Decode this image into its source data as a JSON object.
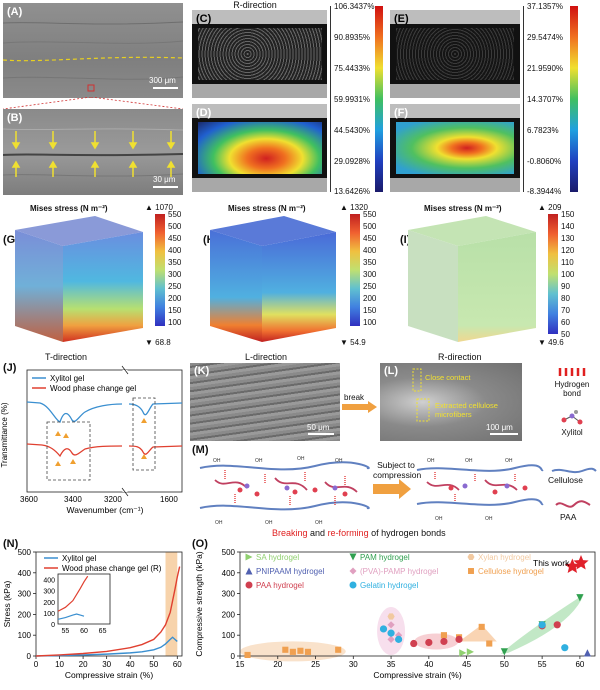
{
  "panels": {
    "A": "(A)",
    "B": "(B)",
    "C": "(C)",
    "D": "(D)",
    "E": "(E)",
    "F": "(F)",
    "G": "(G)",
    "H": "(H)",
    "I": "(I)",
    "J": "(J)",
    "K": "(K)",
    "L": "(L)",
    "M": "(M)",
    "N": "(N)",
    "O": "(O)"
  },
  "sem": {
    "a_scale": "300 μm",
    "b_scale": "30 μm",
    "k_scale": "50 μm",
    "l_scale": "100 μm",
    "l_close": "Close contact",
    "l_extracted": "Extracted cellulose microfibers",
    "break_label": "break"
  },
  "dic": {
    "title_r": "R-direction",
    "scale1": [
      "106.3437%",
      "90.8935%",
      "75.4433%",
      "59.9931%",
      "44.5430%",
      "29.0928%",
      "13.6426%"
    ],
    "scale2": [
      "37.1357%",
      "29.5474%",
      "21.9590%",
      "14.3707%",
      "6.7823%",
      "-0.8060%",
      "-8.3944%"
    ]
  },
  "cubes": {
    "mises_label": "Mises stress (N m⁻²)",
    "g": {
      "max": "▲ 1070",
      "min": "▼ 68.8",
      "ticks": [
        "550",
        "500",
        "450",
        "400",
        "350",
        "300",
        "250",
        "200",
        "150",
        "100"
      ],
      "direction": "T-direction"
    },
    "h": {
      "max": "▲ 1320",
      "min": "▼ 54.9",
      "ticks": [
        "550",
        "500",
        "450",
        "400",
        "350",
        "300",
        "250",
        "200",
        "150",
        "100"
      ],
      "direction": "L-direction"
    },
    "i": {
      "max": "▲ 209",
      "min": "▼ 49.6",
      "ticks": [
        "150",
        "140",
        "130",
        "120",
        "110",
        "100",
        "90",
        "80",
        "70",
        "60",
        "50"
      ],
      "direction": "R-direction"
    }
  },
  "legend_right": {
    "hbond": "Hydrogen bond",
    "xylitol": "Xylitol",
    "cellulose": "Cellulose",
    "paa": "PAA"
  },
  "scheme": {
    "subject_to": "Subject to compression",
    "caption_breaking": "Breaking",
    "caption_and": " and ",
    "caption_reforming": "re-forming",
    "caption_tail": " of hydrogen bonds"
  },
  "ftir": {
    "ylabel": "Transmittance (%)",
    "xlabel": "Wavenumber (cm⁻¹)",
    "legend": [
      "Xylitol gel",
      "Wood phase change gel"
    ],
    "xticks_left": [
      "3600",
      "3400",
      "3200"
    ],
    "xticks_right": [
      "1600"
    ]
  },
  "chart_data": [
    {
      "type": "line",
      "title": "",
      "xlabel": "Compressive strain (%)",
      "ylabel": "Stress (kPa)",
      "xlim": [
        0,
        62
      ],
      "ylim": [
        0,
        500
      ],
      "xticks": [
        "0",
        "10",
        "20",
        "30",
        "40",
        "50",
        "60"
      ],
      "yticks": [
        "0",
        "100",
        "200",
        "300",
        "400",
        "500"
      ],
      "series": [
        {
          "name": "Xylitol gel",
          "color": "#3a8fd0",
          "x": [
            0,
            10,
            20,
            30,
            40,
            45,
            50,
            53,
            55,
            57,
            58,
            59,
            60
          ],
          "y": [
            0,
            2,
            5,
            9,
            15,
            20,
            30,
            42,
            58,
            80,
            90,
            80,
            70
          ]
        },
        {
          "name": "Wood phase change gel (R)",
          "color": "#e04030",
          "x": [
            0,
            10,
            20,
            30,
            40,
            45,
            50,
            53,
            55,
            57,
            59,
            60,
            61
          ],
          "y": [
            0,
            5,
            12,
            22,
            40,
            55,
            80,
            115,
            150,
            210,
            320,
            380,
            430
          ]
        }
      ],
      "inset": {
        "xlim": [
          53,
          67
        ],
        "ylim": [
          0,
          450
        ],
        "xticks": [
          "55",
          "60",
          "65"
        ],
        "yticks": [
          "0",
          "100",
          "200",
          "300",
          "400"
        ]
      }
    },
    {
      "type": "scatter",
      "title": "",
      "xlabel": "Compressive strain (%)",
      "ylabel": "Compressive strength (kPa)",
      "xlim": [
        15,
        62
      ],
      "ylim": [
        0,
        500
      ],
      "xticks": [
        "15",
        "20",
        "25",
        "30",
        "35",
        "40",
        "45",
        "50",
        "55",
        "60"
      ],
      "yticks": [
        "0",
        "100",
        "200",
        "300",
        "400",
        "500"
      ],
      "series": [
        {
          "name": "SA hydrogel",
          "color": "#90d070",
          "marker": "triangle-right",
          "points": [
            [
              44.5,
              15
            ],
            [
              45.5,
              20
            ]
          ]
        },
        {
          "name": "PAM hydrogel",
          "color": "#30a050",
          "marker": "triangle-down",
          "points": [
            [
              50,
              20
            ],
            [
              60,
              280
            ],
            [
              55,
              150
            ]
          ]
        },
        {
          "name": "Xylan hydrogel",
          "color": "#f2c9a0",
          "marker": "hexagon",
          "points": [
            [
              35,
              190
            ]
          ]
        },
        {
          "name": "PNIPAAM hydrogel",
          "color": "#5060b0",
          "marker": "triangle-up",
          "points": [
            [
              61,
              15
            ]
          ]
        },
        {
          "name": "(PVA)-PAMP hydrogel",
          "color": "#e0a0c0",
          "marker": "diamond",
          "points": [
            [
              35,
              150
            ],
            [
              36,
              100
            ],
            [
              35,
              80
            ]
          ]
        },
        {
          "name": "Cellulose hydrogel",
          "color": "#f0a050",
          "marker": "square",
          "points": [
            [
              16,
              5
            ],
            [
              21,
              30
            ],
            [
              22,
              20
            ],
            [
              23,
              25
            ],
            [
              24,
              20
            ],
            [
              28,
              30
            ],
            [
              42,
              100
            ],
            [
              47,
              140
            ],
            [
              48,
              60
            ],
            [
              44,
              90
            ]
          ]
        },
        {
          "name": "PAA hydrogel",
          "color": "#d04050",
          "marker": "circle",
          "points": [
            [
              38,
              60
            ],
            [
              40,
              65
            ],
            [
              42,
              70
            ],
            [
              55,
              145
            ],
            [
              57,
              150
            ],
            [
              44,
              80
            ]
          ]
        },
        {
          "name": "Gelatin hydrogel",
          "color": "#30b0e0",
          "marker": "circle",
          "points": [
            [
              34,
              130
            ],
            [
              35,
              110
            ],
            [
              36,
              80
            ],
            [
              58,
              40
            ],
            [
              55,
              150
            ]
          ]
        },
        {
          "name": "This work",
          "color": "#e0202a",
          "marker": "star",
          "points": [
            [
              59,
              430
            ]
          ]
        }
      ]
    }
  ]
}
